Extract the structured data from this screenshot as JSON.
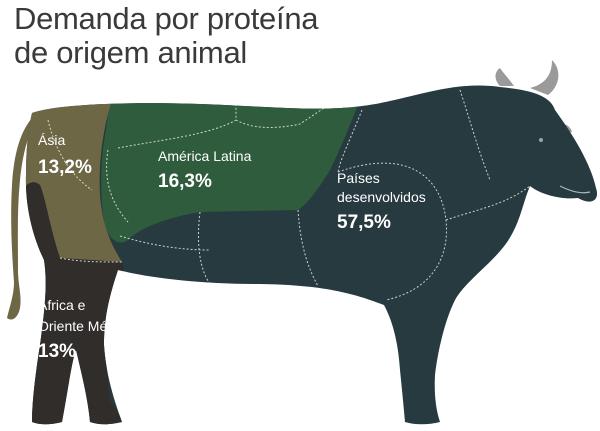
{
  "chart_data": {
    "type": "pie",
    "title_lines": [
      "Demanda por proteína",
      "de origem animal"
    ],
    "unit": "%",
    "categories": [
      "Ásia",
      "América Latina",
      "Países desenvolvidos",
      "África e Oriente Médio"
    ],
    "label_lines": [
      [
        "Ásia"
      ],
      [
        "América Latina"
      ],
      [
        "Países",
        "desenvolvidos"
      ],
      [
        "África e",
        "Oriente Médio"
      ]
    ],
    "value_labels": [
      "13,2%",
      "16,3%",
      "57,5%",
      "13%"
    ],
    "values": [
      13.2,
      16.3,
      57.5,
      13
    ],
    "colors": {
      "asia": "#6e6745",
      "america_latina": "#2f5c3c",
      "paises_desenvolvidos": "#263a40",
      "africa_oriente_medio": "#302d2b",
      "horns": "#9a9a9a",
      "cut_lines": "#e8ecea"
    }
  }
}
